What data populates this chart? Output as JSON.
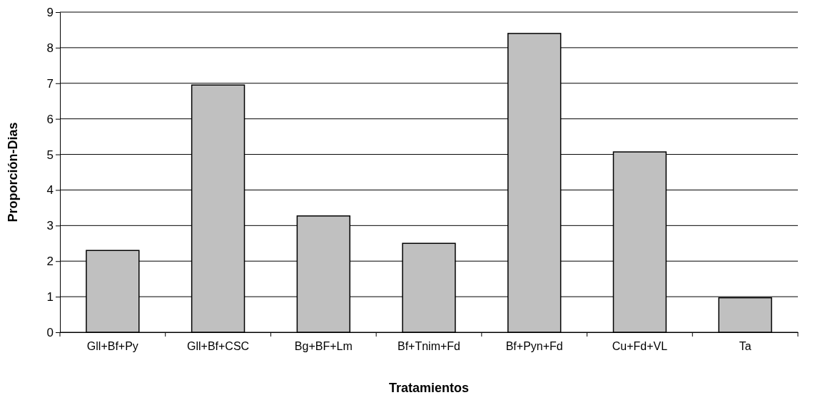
{
  "chart_data": {
    "type": "bar",
    "xlabel": "Tratamientos",
    "ylabel": "Proporción-Dias",
    "categories": [
      "Gll+Bf+Py",
      "Gll+Bf+CSC",
      "Bg+BF+Lm",
      "Bf+Tnim+Fd",
      "Bf+Pyn+Fd",
      "Cu+Fd+VL",
      "Ta"
    ],
    "values": [
      2.3,
      6.95,
      3.27,
      2.5,
      8.4,
      5.07,
      0.97
    ],
    "color": "#c0c0c0",
    "ylim": [
      0,
      9
    ],
    "yticks": [
      0,
      1,
      2,
      3,
      4,
      5,
      6,
      7,
      8,
      9
    ],
    "grid": "y"
  }
}
